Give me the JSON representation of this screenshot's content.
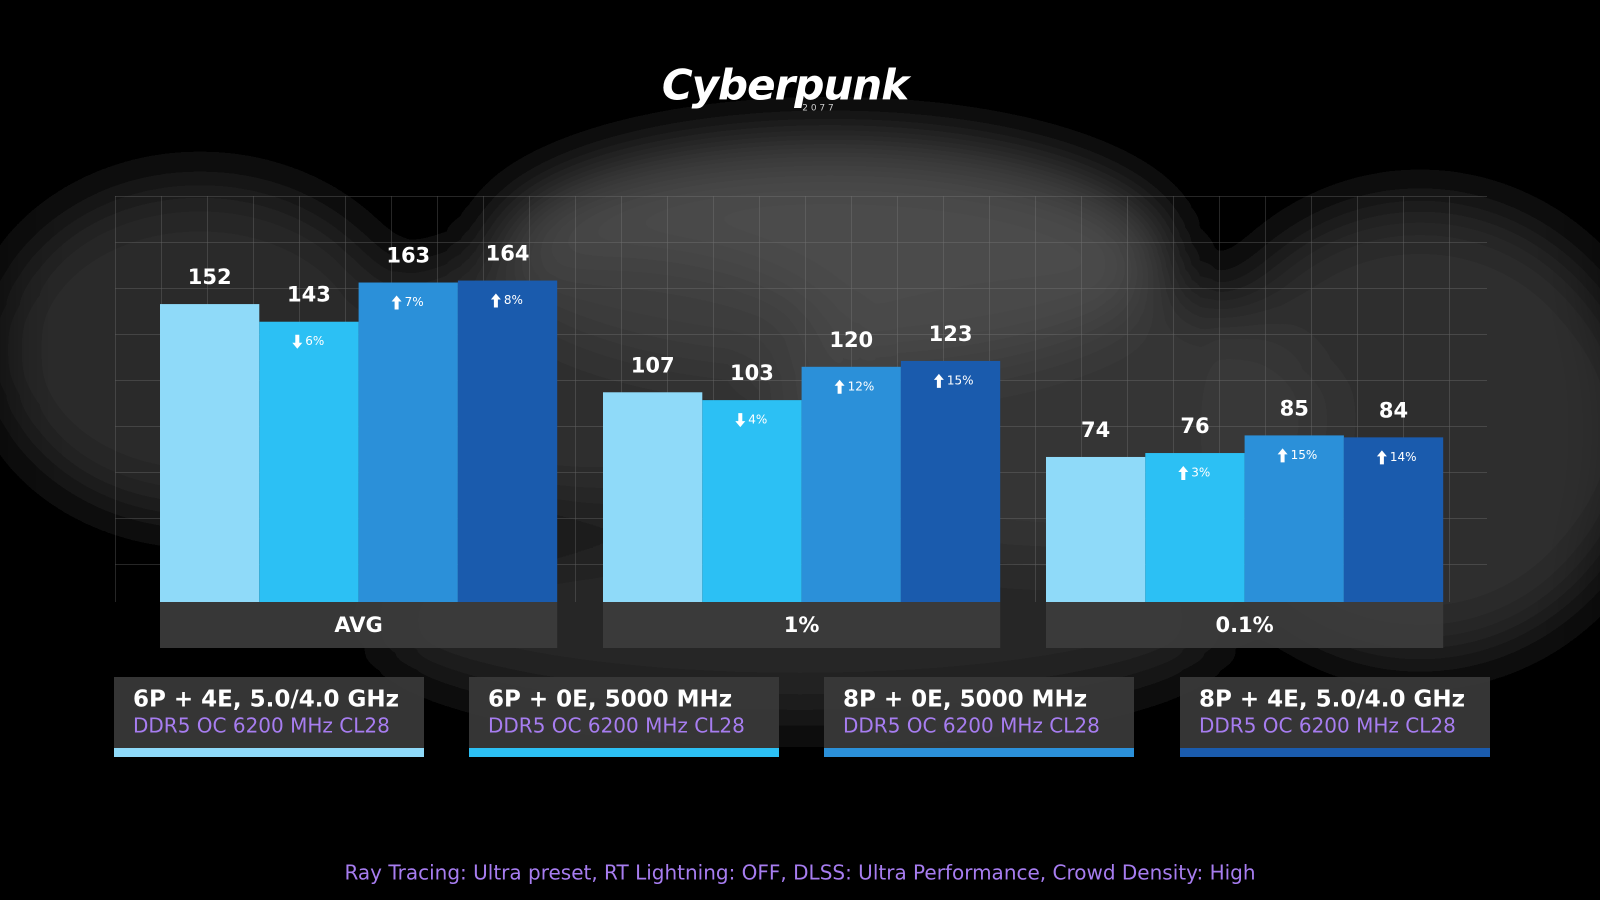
{
  "chart_data": {
    "type": "bar",
    "title": "Cyberpunk",
    "subtitle": "2 0 7 7",
    "categories": [
      "AVG",
      "1%",
      "0.1%"
    ],
    "ylim": [
      0,
      200
    ],
    "series": [
      {
        "name": "6P + 4E, 5.0/4.0 GHz",
        "memory": "DDR5 OC 6200 MHz CL28",
        "color": "#8fdaf9",
        "values": [
          152,
          107,
          74
        ],
        "changes": [
          null,
          null,
          null
        ]
      },
      {
        "name": "6P + 0E, 5000 MHz",
        "memory": "DDR5 OC 6200 MHz CL28",
        "color": "#2cc0f4",
        "values": [
          143,
          103,
          76
        ],
        "changes": [
          {
            "value": -6,
            "label": "6%"
          },
          {
            "value": -4,
            "label": "4%"
          },
          {
            "value": 3,
            "label": "3%"
          }
        ]
      },
      {
        "name": "8P + 0E, 5000 MHz",
        "memory": "DDR5 OC 6200 MHz CL28",
        "color": "#2b90d9",
        "values": [
          163,
          120,
          85
        ],
        "changes": [
          {
            "value": 7,
            "label": "7%"
          },
          {
            "value": 12,
            "label": "12%"
          },
          {
            "value": 15,
            "label": "15%"
          }
        ]
      },
      {
        "name": "8P + 4E, 5.0/4.0 GHz",
        "memory": "DDR5 OC 6200 MHz CL28",
        "color": "#1a5bad",
        "values": [
          164,
          123,
          84
        ],
        "changes": [
          {
            "value": 8,
            "label": "8%"
          },
          {
            "value": 15,
            "label": "15%"
          },
          {
            "value": 14,
            "label": "14%"
          }
        ]
      }
    ],
    "footnote": "Ray Tracing: Ultra preset, RT Lightning: OFF, DLSS: Ultra Performance, Crowd Density: High"
  }
}
